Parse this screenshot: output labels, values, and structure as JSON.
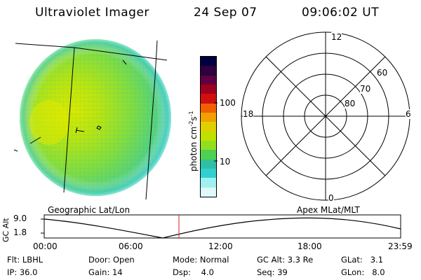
{
  "header": {
    "instrument": "Ultraviolet Imager",
    "date": "24 Sep 07",
    "time": "09:06:02 UT"
  },
  "colorbar": {
    "unit_label": "photon cm",
    "unit_sup1": "-2",
    "unit_s": "s",
    "unit_sup2": "-1",
    "tick_100": "100",
    "tick_10": "10",
    "colors": [
      "#000040",
      "#300040",
      "#600040",
      "#a00020",
      "#d01010",
      "#f06000",
      "#f0a000",
      "#e0d000",
      "#c0e000",
      "#90e020",
      "#50d050",
      "#30c0a0",
      "#30d0d0",
      "#a0f0f0",
      "#e0f8f8"
    ]
  },
  "polar_plot": {
    "mlt_12": "12",
    "mlt_18": "18",
    "mlt_6": "6",
    "mlt_0": "0",
    "lat_60": "60",
    "lat_70": "70",
    "lat_80": "80"
  },
  "labels": {
    "left_projection": "Geographic Lat/Lon",
    "right_projection": "Apex MLat/MLT"
  },
  "altitude_plot": {
    "axis_label": "GC Alt",
    "y_top": "9.0",
    "y_bottom": "1.8",
    "x_ticks": [
      "00:00",
      "06:00",
      "12:00",
      "18:00",
      "23:59"
    ],
    "current_time_marker": "09:06"
  },
  "info": {
    "filter_label": "Flt:",
    "filter_value": "LBHL",
    "ip_label": "IP:",
    "ip_value": "36.0",
    "door_label": "Door:",
    "door_value": "Open",
    "gain_label": "Gain:",
    "gain_value": "14",
    "mode_label": "Mode:",
    "mode_value": "Normal",
    "dsp_label": "Dsp:",
    "dsp_value": "4.0",
    "gcalt_label": "GC Alt:",
    "gcalt_value": "3.3 Re",
    "seq_label": "Seq:",
    "seq_value": "39",
    "glat_label": "GLat:",
    "glat_value": "3.1",
    "glon_label": "GLon:",
    "glon_value": "8.0"
  }
}
